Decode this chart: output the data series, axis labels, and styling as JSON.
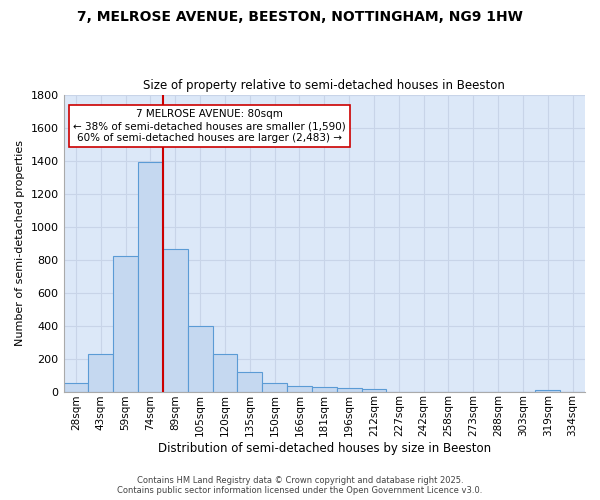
{
  "title": "7, MELROSE AVENUE, BEESTON, NOTTINGHAM, NG9 1HW",
  "subtitle": "Size of property relative to semi-detached houses in Beeston",
  "xlabel": "Distribution of semi-detached houses by size in Beeston",
  "ylabel_actual": "Number of semi-detached properties",
  "categories": [
    "28sqm",
    "43sqm",
    "59sqm",
    "74sqm",
    "89sqm",
    "105sqm",
    "120sqm",
    "135sqm",
    "150sqm",
    "166sqm",
    "181sqm",
    "196sqm",
    "212sqm",
    "227sqm",
    "242sqm",
    "258sqm",
    "273sqm",
    "288sqm",
    "303sqm",
    "319sqm",
    "334sqm"
  ],
  "values": [
    50,
    225,
    820,
    1390,
    865,
    395,
    225,
    120,
    50,
    35,
    28,
    20,
    15,
    0,
    0,
    0,
    0,
    0,
    0,
    12,
    0
  ],
  "bar_color": "#c5d8f0",
  "bar_edge_color": "#5b9bd5",
  "marker_line_color": "#cc0000",
  "marker_label": "7 MELROSE AVENUE: 80sqm",
  "annotation_smaller": "← 38% of semi-detached houses are smaller (1,590)",
  "annotation_larger": "60% of semi-detached houses are larger (2,483) →",
  "annotation_box_facecolor": "#ffffff",
  "annotation_box_edgecolor": "#cc0000",
  "ylim": [
    0,
    1800
  ],
  "yticks": [
    0,
    200,
    400,
    600,
    800,
    1000,
    1200,
    1400,
    1600,
    1800
  ],
  "grid_color": "#c8d4e8",
  "plot_bg_color": "#dce8f8",
  "fig_bg_color": "#ffffff",
  "footer_line1": "Contains HM Land Registry data © Crown copyright and database right 2025.",
  "footer_line2": "Contains public sector information licensed under the Open Government Licence v3.0."
}
